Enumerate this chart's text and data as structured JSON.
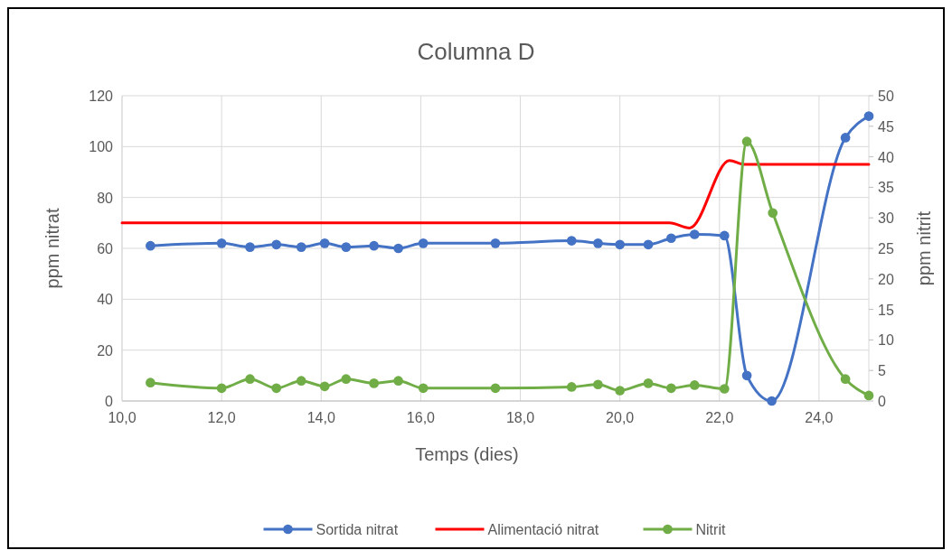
{
  "chart_data": {
    "type": "line",
    "title": "Columna D",
    "xlabel": "Temps (dies)",
    "ylabel": "ppm nitrat",
    "y2label": "ppm nitrit",
    "xlim": [
      10,
      25
    ],
    "xticks": [
      {
        "value": 10,
        "label": "10,0"
      },
      {
        "value": 12,
        "label": "12,0"
      },
      {
        "value": 14,
        "label": "14,0"
      },
      {
        "value": 16,
        "label": "16,0"
      },
      {
        "value": 18,
        "label": "18,0"
      },
      {
        "value": 20,
        "label": "20,0"
      },
      {
        "value": 22,
        "label": "22,0"
      },
      {
        "value": 24,
        "label": "24,0"
      }
    ],
    "ylim": [
      0,
      120
    ],
    "yticks": [
      0,
      20,
      40,
      60,
      80,
      100,
      120
    ],
    "y2lim": [
      0,
      50
    ],
    "y2ticks": [
      0,
      5,
      10,
      15,
      20,
      25,
      30,
      35,
      40,
      45,
      50
    ],
    "grid": true,
    "legend": "bottom",
    "marker": "circle",
    "line_style": "solid",
    "series": [
      {
        "name": "Sortida nitrat",
        "color": "#4472c4",
        "x": [
          10.57,
          12.0,
          12.57,
          13.1,
          13.6,
          14.07,
          14.5,
          15.06,
          15.55,
          16.05,
          17.5,
          19.03,
          19.56,
          20.0,
          20.57,
          21.03,
          21.5,
          22.1,
          22.55,
          23.05,
          24.53,
          25
        ],
        "values": [
          61,
          62,
          60.5,
          61.5,
          60.5,
          62,
          60.5,
          61,
          60,
          62,
          62,
          63,
          62,
          61.5,
          61.5,
          64,
          65.5,
          65,
          10,
          0,
          103.5,
          112
        ]
      },
      {
        "name": "Alimentació nitrat",
        "color": "#ff0000",
        "marker": "none",
        "x": [
          10,
          21,
          21.4,
          22.2,
          22.5,
          25
        ],
        "values": [
          70,
          70,
          68,
          94.5,
          93,
          93
        ]
      },
      {
        "name": "Nitrit",
        "color": "#70ad47",
        "axis": "y2",
        "x": [
          10.57,
          12.0,
          12.57,
          13.1,
          13.6,
          14.07,
          14.5,
          15.06,
          15.55,
          16.05,
          17.5,
          19.03,
          19.56,
          20.0,
          20.57,
          21.03,
          21.5,
          22.1,
          22.55,
          23.07,
          24.53,
          25
        ],
        "values": [
          3.0,
          2.1,
          3.6,
          2.1,
          3.3,
          2.4,
          3.6,
          2.9,
          3.3,
          2.1,
          2.1,
          2.3,
          2.7,
          1.7,
          2.9,
          2.1,
          2.6,
          2.0,
          42.5,
          30.8,
          3.6,
          0.9
        ]
      }
    ]
  }
}
